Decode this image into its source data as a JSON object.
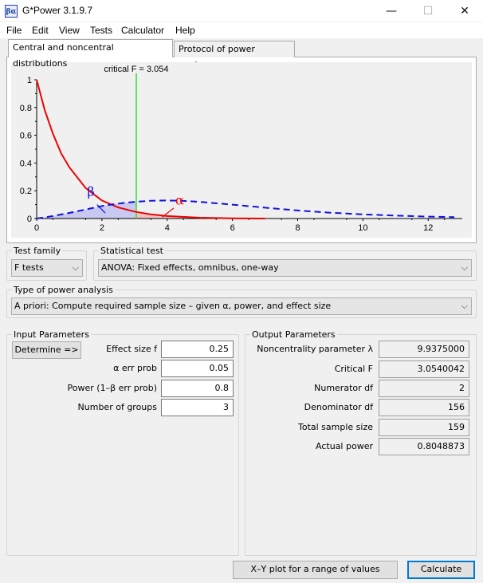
{
  "window": {
    "title": "G*Power 3.1.9.7",
    "icon_text": "βα",
    "minimize_glyph": "—",
    "maximize_glyph": "☐",
    "close_glyph": "✕"
  },
  "menu": [
    {
      "label": "File"
    },
    {
      "label": "Edit"
    },
    {
      "label": "View"
    },
    {
      "label": "Tests"
    },
    {
      "label": "Calculator"
    },
    {
      "label": "Help"
    }
  ],
  "tabs": [
    {
      "label": "Central and noncentral distributions",
      "active": true
    },
    {
      "label": "Protocol of power analyses",
      "active": false
    }
  ],
  "chart_data": {
    "type": "line",
    "annotation": "critical F = 3.054",
    "critical_f": 3.054,
    "xlim": [
      0,
      12.8
    ],
    "ylim": [
      0,
      1
    ],
    "x_ticks": [
      "0",
      "2",
      "4",
      "6",
      "8",
      "10",
      "12"
    ],
    "y_ticks": [
      "0",
      "0.2",
      "0.4",
      "0.6",
      "0.8",
      "1"
    ],
    "series": [
      {
        "name": "",
        "style": "solid",
        "color": "#ee0000",
        "x": [
          0,
          0.25,
          0.5,
          0.75,
          1,
          1.5,
          2,
          2.5,
          3,
          3.5,
          4,
          5,
          6,
          7
        ],
        "y": [
          1.0,
          0.78,
          0.61,
          0.47,
          0.37,
          0.22,
          0.13,
          0.08,
          0.05,
          0.03,
          0.018,
          0.006,
          0.002,
          0.0
        ]
      },
      {
        "name": "",
        "style": "dashed",
        "color": "#1010dd",
        "x": [
          0,
          0.5,
          1,
          1.5,
          2,
          2.5,
          3,
          3.5,
          4,
          4.5,
          5,
          6,
          7,
          8,
          9,
          10,
          11,
          12,
          12.8
        ],
        "y": [
          0.0,
          0.018,
          0.04,
          0.065,
          0.09,
          0.108,
          0.12,
          0.128,
          0.13,
          0.127,
          0.12,
          0.1,
          0.078,
          0.058,
          0.042,
          0.03,
          0.021,
          0.014,
          0.01
        ]
      }
    ],
    "greek_labels": {
      "beta": "β",
      "alpha": "α"
    },
    "colors": {
      "alpha_curve": "#ee0000",
      "beta_curve": "#1010dd",
      "critical_line": "#33dd33",
      "beta_fill": "#c8c8f0"
    }
  },
  "test_family": {
    "label": "Test family",
    "value": "F tests"
  },
  "statistical_test": {
    "label": "Statistical test",
    "value": "ANOVA: Fixed effects, omnibus, one-way"
  },
  "power_analysis": {
    "label": "Type of power analysis",
    "value": "A priori: Compute required sample size – given α, power, and effect size"
  },
  "input": {
    "title": "Input Parameters",
    "determine_button": "Determine =>",
    "rows": [
      {
        "label": "Effect size f",
        "value": "0.25"
      },
      {
        "label": "α err prob",
        "value": "0.05"
      },
      {
        "label": "Power (1–β err prob)",
        "value": "0.8"
      },
      {
        "label": "Number of groups",
        "value": "3"
      }
    ]
  },
  "output": {
    "title": "Output Parameters",
    "rows": [
      {
        "label": "Noncentrality parameter λ",
        "value": "9.9375000"
      },
      {
        "label": "Critical F",
        "value": "3.0540042"
      },
      {
        "label": "Numerator df",
        "value": "2"
      },
      {
        "label": "Denominator df",
        "value": "156"
      },
      {
        "label": "Total sample size",
        "value": "159"
      },
      {
        "label": "Actual power",
        "value": "0.8048873"
      }
    ]
  },
  "buttons": {
    "xy_plot": "X–Y plot for a range of values",
    "calculate": "Calculate"
  },
  "dropdown_arrow": "⌵"
}
